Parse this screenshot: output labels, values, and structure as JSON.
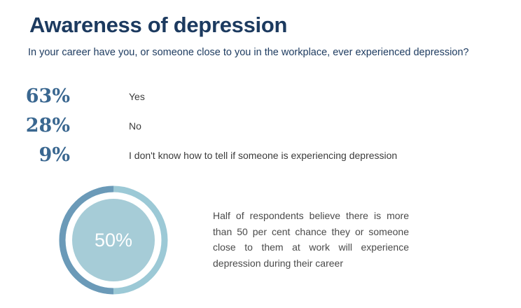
{
  "title": "Awareness of depression",
  "question": "In your career have you, or someone close to you in the workplace, ever experienced depression?",
  "results": [
    {
      "percent": "63%",
      "label": "Yes"
    },
    {
      "percent": "28%",
      "label": "No"
    },
    {
      "percent": "9%",
      "label": "I don't know how to tell if someone is experiencing depression"
    }
  ],
  "highlight": {
    "value": "50%",
    "value_fraction": 0.5,
    "text": "Half of respondents believe there is more than 50 per cent chance they or someone close to them at work will experience depression during their career"
  },
  "colors": {
    "title": "#1c3a5f",
    "percent": "#3a6790",
    "ring_dark": "#6b9ab8",
    "ring_light": "#9cc9d6",
    "disc": "#a6ccd7"
  }
}
